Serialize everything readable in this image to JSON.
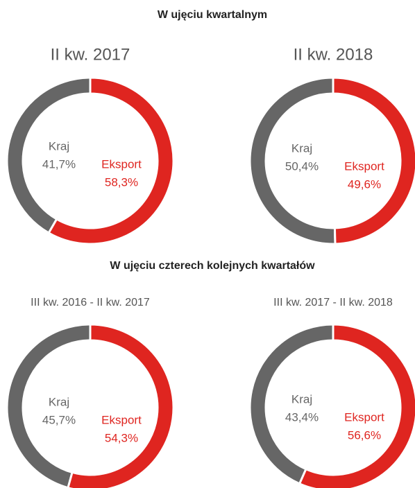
{
  "headings": [
    "W ujęciu kwartalnym",
    "W ujęciu czterech kolejnych kwartałów"
  ],
  "chart_data": [
    {
      "type": "donut",
      "title": "II kw. 2017",
      "categories": [
        "Kraj",
        "Eksport"
      ],
      "values": [
        41.7,
        58.3
      ],
      "value_labels": [
        "41,7%",
        "58,3%"
      ],
      "colors": [
        "#666666",
        "#df2520"
      ]
    },
    {
      "type": "donut",
      "title": "II kw. 2018",
      "categories": [
        "Kraj",
        "Eksport"
      ],
      "values": [
        50.4,
        49.6
      ],
      "value_labels": [
        "50,4%",
        "49,6%"
      ],
      "colors": [
        "#666666",
        "#df2520"
      ]
    },
    {
      "type": "donut",
      "title": "III kw. 2016 - II kw. 2017",
      "categories": [
        "Kraj",
        "Eksport"
      ],
      "values": [
        45.7,
        54.3
      ],
      "value_labels": [
        "45,7%",
        "54,3%"
      ],
      "colors": [
        "#666666",
        "#df2520"
      ]
    },
    {
      "type": "donut",
      "title": "III kw. 2017 - II kw. 2018",
      "categories": [
        "Kraj",
        "Eksport"
      ],
      "values": [
        43.4,
        56.6
      ],
      "value_labels": [
        "43,4%",
        "56,6%"
      ],
      "colors": [
        "#666666",
        "#df2520"
      ]
    }
  ]
}
